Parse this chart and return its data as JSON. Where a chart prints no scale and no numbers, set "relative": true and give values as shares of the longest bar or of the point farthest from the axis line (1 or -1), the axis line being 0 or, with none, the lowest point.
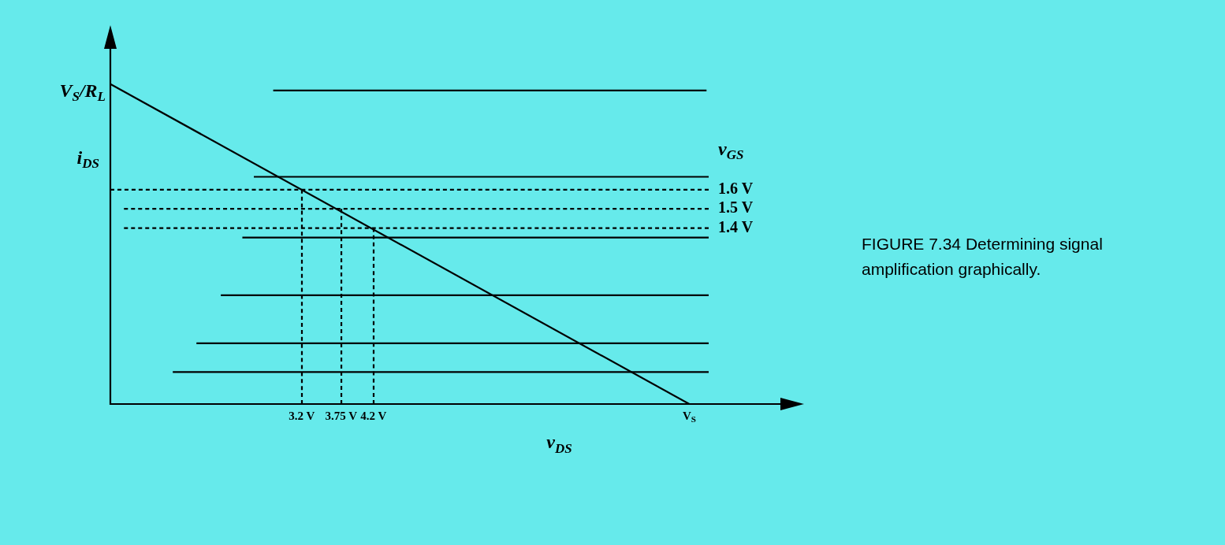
{
  "chart_data": {
    "type": "line",
    "relative": true,
    "xlabel": "v$_{DS}$",
    "ylabel": "i$_{DS}$",
    "legend_title": "v$_{GS}$",
    "xlim": [
      0.53,
      9.87
    ],
    "xticks": [
      {
        "value": 3.2,
        "label": "3.2 V"
      },
      {
        "value": 3.75,
        "label": "3.75 V"
      },
      {
        "value": 4.2,
        "label": "4.2 V"
      },
      {
        "value": 8.6,
        "label": "V$_{S}$"
      }
    ],
    "grid": false,
    "legend": false,
    "marker": "none",
    "line_style": "solid",
    "annotations": [
      {
        "text": "V$_{S}$/R$_{L}$",
        "x": 0.53,
        "y": 1
      },
      "FIGURE 7.34 Determining signal amplification graphically."
    ],
    "series": [
      {
        "color": "#000000",
        "x": [
          0.53,
          8.6
        ],
        "values": [
          1,
          0
        ]
      },
      {
        "color": "#000000",
        "x": [
          2.8,
          8.84
        ],
        "values": [
          0.98,
          0.98
        ]
      },
      {
        "color": "#000000",
        "x": [
          2.53,
          8.87
        ],
        "values": [
          0.71,
          0.71
        ]
      },
      {
        "color": "#000000",
        "x": [
          2.37,
          8.87
        ],
        "values": [
          0.52,
          0.52
        ]
      },
      {
        "color": "#000000",
        "x": [
          2.07,
          8.87
        ],
        "values": [
          0.34,
          0.34
        ]
      },
      {
        "color": "#000000",
        "x": [
          1.73,
          8.87
        ],
        "values": [
          0.19,
          0.19
        ]
      },
      {
        "color": "#000000",
        "x": [
          1.4,
          8.87
        ],
        "values": [
          0.1,
          0.1
        ]
      },
      {
        "name": "1.6 V",
        "color": "#000000",
        "line_style": "dashed",
        "x": [
          0.53,
          8.87
        ],
        "values": [
          0.67,
          0.67
        ]
      },
      {
        "name": "1.5 V",
        "color": "#000000",
        "line_style": "dashed",
        "x": [
          0.72,
          8.87
        ],
        "values": [
          0.61,
          0.61
        ]
      },
      {
        "name": "1.4 V",
        "color": "#000000",
        "line_style": "dashed",
        "x": [
          0.72,
          8.87
        ],
        "values": [
          0.55,
          0.55
        ]
      },
      {
        "color": "#000000",
        "line_style": "dashed",
        "x": [
          3.2,
          3.2
        ],
        "values": [
          0.67,
          0
        ]
      },
      {
        "color": "#000000",
        "line_style": "dashed",
        "x": [
          3.75,
          3.75
        ],
        "values": [
          0.61,
          0
        ]
      },
      {
        "color": "#000000",
        "line_style": "dashed",
        "x": [
          4.2,
          4.2
        ],
        "values": [
          0.55,
          0
        ]
      }
    ]
  }
}
